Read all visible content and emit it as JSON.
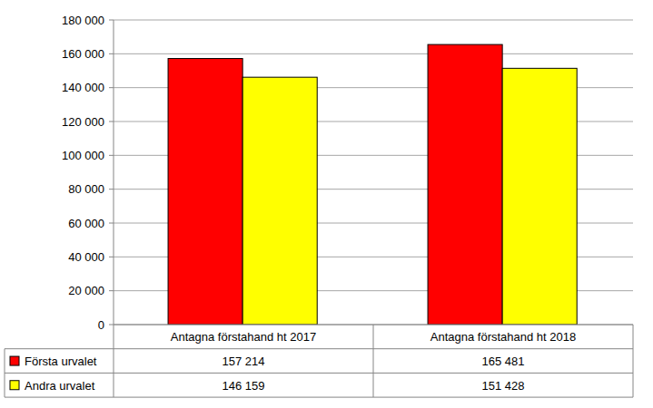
{
  "chart_data": {
    "type": "bar",
    "categories": [
      "Antagna förstahand ht 2017",
      "Antagna förstahand ht 2018"
    ],
    "series": [
      {
        "name": "Första urvalet",
        "color": "#ff0000",
        "values": [
          157214,
          165481
        ],
        "value_labels": [
          "157 214",
          "165 481"
        ]
      },
      {
        "name": "Andra urvalet",
        "color": "#ffff00",
        "values": [
          146159,
          151428
        ],
        "value_labels": [
          "146 159",
          "151 428"
        ]
      }
    ],
    "ylim": [
      0,
      180000
    ],
    "yticks": [
      0,
      {
        "value": 20000,
        "label": "20 000"
      },
      {
        "value": 40000,
        "label": "40 000"
      },
      {
        "value": 60000,
        "label": "60 000"
      },
      {
        "value": 80000,
        "label": "80 000"
      },
      {
        "value": 100000,
        "label": "100 000"
      },
      {
        "value": 120000,
        "label": "120 000"
      },
      {
        "value": 140000,
        "label": "140 000"
      },
      {
        "value": 160000,
        "label": "160 000"
      },
      {
        "value": 180000,
        "label": "180 000"
      }
    ],
    "grid": true
  }
}
